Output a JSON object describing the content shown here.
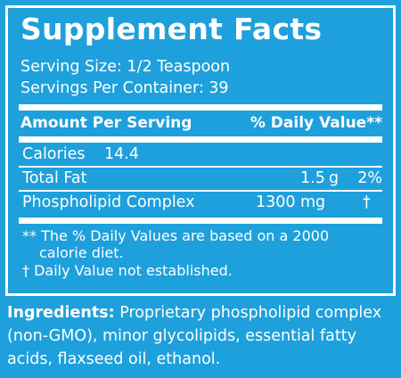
{
  "title": "Supplement Facts",
  "serving_size": "Serving Size: 1/2 Teaspoon",
  "servings_per_container": "Servings Per Container: 39",
  "header": {
    "amount_label": "Amount Per Serving",
    "dv_label": "% Daily Value**"
  },
  "calories": {
    "label": "Calories",
    "value": "14.4"
  },
  "rows": [
    {
      "name": "Total Fat",
      "amount": "1.5",
      "unit": "g",
      "dv": "2%"
    },
    {
      "name": "Phospholipid Complex",
      "amount": "1300",
      "unit": "mg",
      "dv": "†"
    }
  ],
  "footnotes": {
    "dv_line1": "** The % Daily Values are based on a 2000",
    "dv_line2": "calorie diet.",
    "not_established": "† Daily Value not established."
  },
  "ingredients": {
    "label": "Ingredients:",
    "text": " Proprietary phospholipid complex (non-GMO), minor glycolipids, essential fatty acids, flaxseed oil, ethanol."
  }
}
